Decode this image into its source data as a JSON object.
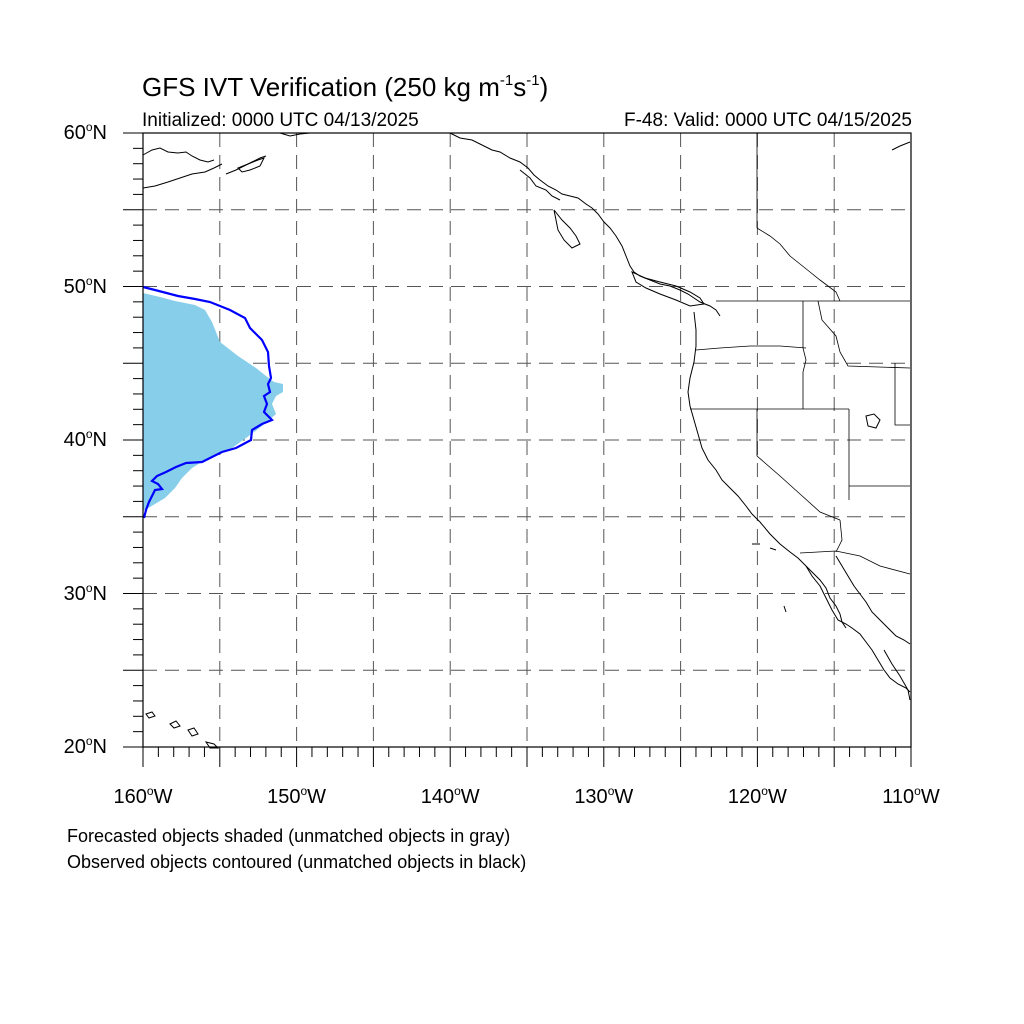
{
  "title": {
    "prefix": "GFS IVT Verification (250 kg m",
    "exp1": "-1",
    "mid": "s",
    "exp2": "-1",
    "suffix": ")"
  },
  "initialized": "Initialized: 0000 UTC 04/13/2025",
  "valid": "F-48: Valid: 0000 UTC 04/15/2025",
  "axes": {
    "lat_labels": [
      {
        "value": 60,
        "text": "60",
        "hemi": "N"
      },
      {
        "value": 50,
        "text": "50",
        "hemi": "N"
      },
      {
        "value": 40,
        "text": "40",
        "hemi": "N"
      },
      {
        "value": 30,
        "text": "30",
        "hemi": "N"
      },
      {
        "value": 20,
        "text": "20",
        "hemi": "N"
      }
    ],
    "lon_labels": [
      {
        "value": -160,
        "text": "160",
        "hemi": "W"
      },
      {
        "value": -150,
        "text": "150",
        "hemi": "W"
      },
      {
        "value": -140,
        "text": "140",
        "hemi": "W"
      },
      {
        "value": -130,
        "text": "130",
        "hemi": "W"
      },
      {
        "value": -120,
        "text": "120",
        "hemi": "W"
      },
      {
        "value": -110,
        "text": "110",
        "hemi": "W"
      }
    ],
    "degree_symbol": "o",
    "lon_range": [
      -160,
      -110
    ],
    "lat_range": [
      20,
      60
    ],
    "grid_step": 5,
    "grid": "dashed"
  },
  "colors": {
    "forecast_fill": "#87ceeb",
    "observed_contour": "#0000ff",
    "coastline": "#000000",
    "grid": "#555555"
  },
  "legend": {
    "line1": "Forecasted objects shaded (unmatched objects in gray)",
    "line2": "Observed objects contoured (unmatched objects in black)"
  }
}
